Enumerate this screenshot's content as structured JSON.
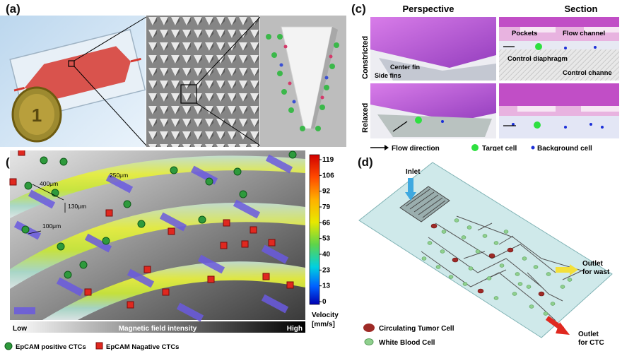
{
  "panel_a": {
    "label": "(a)",
    "coin_text": "1"
  },
  "panel_b": {
    "label": "(b)",
    "dim_400": "400μm",
    "dim_250": "250μm",
    "dim_130": "130μm",
    "dim_100": "100μm",
    "gradient_low": "Low",
    "gradient_title": "Magnetic field intensity",
    "gradient_high": "High",
    "legend_pos": "EpCAM positive CTCs",
    "legend_neg": "EpCAM Nagative CTCs",
    "colorbar_ticks": [
      "119",
      "106",
      "92",
      "79",
      "66",
      "53",
      "40",
      "23",
      "13",
      "0"
    ],
    "colorbar_title": "Velocity",
    "colorbar_unit": "[mm/s]"
  },
  "panel_c": {
    "label": "(c)",
    "col_perspective": "Perspective",
    "col_section": "Section",
    "row_constricted": "Constricted",
    "row_relaxed": "Relaxed",
    "lbl_center_fin": "Center fin",
    "lbl_side_fins": "Side fins",
    "lbl_pockets": "Pockets",
    "lbl_flow_channel": "Flow channel",
    "lbl_control_diaphragm": "Control diaphragm",
    "lbl_control_channel": "Control channe",
    "legend_flow": "Flow direction",
    "legend_target": "Target cell",
    "legend_background": "Background cell"
  },
  "panel_d": {
    "label": "(d)",
    "inlet": "Inlet",
    "outlet_waste_1": "Outlet",
    "outlet_waste_2": "for wast",
    "outlet_ctc_1": "Outlet",
    "outlet_ctc_2": "for CTC",
    "legend_ctc": "Circulating Tumor Cell",
    "legend_wbc": "White Blood Cell"
  },
  "colors": {
    "chip_red": "#d6372f",
    "purple": "#b04ad8",
    "arrow_blue": "#3fa9e0",
    "arrow_yellow": "#f3e03a",
    "arrow_red": "#e0281f",
    "target_green": "#2ee040",
    "bg_cell_blue": "#1b2fd8"
  }
}
